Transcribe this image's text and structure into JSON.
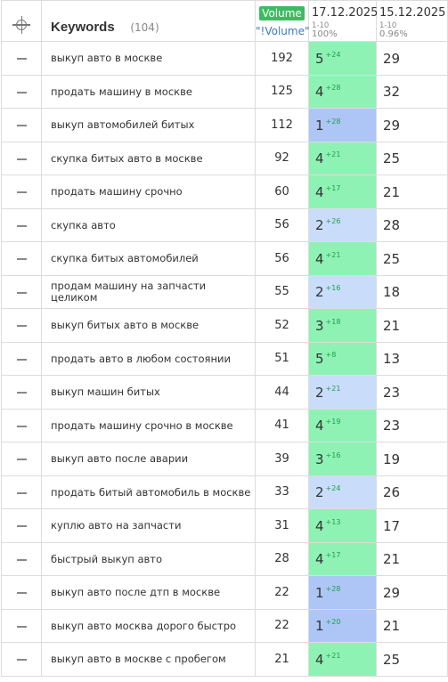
{
  "header": {
    "keywords_label": "Keywords",
    "keywords_count": "(104)",
    "volume_badge": "Volume",
    "volume_sub": "\"!Volume\"",
    "date1": "17.12.2025",
    "date1_range": "1-10",
    "date1_pct": "100%",
    "date2": "15.12.2025",
    "date2_range": "1-10",
    "date2_pct": "0.96%"
  },
  "colors": {
    "top3_green": "#8ff2b5",
    "pos1_blue": "#adc6f5",
    "pos2_lightblue": "#c9ddfb",
    "volume_badge": "#3dbb60",
    "change_text": "#1aa14a"
  },
  "rows": [
    {
      "keyword": "выкуп авто в москве",
      "volume": "192",
      "pos1": "5",
      "change": "+24",
      "pos2": "29"
    },
    {
      "keyword": "продать машину в москве",
      "volume": "125",
      "pos1": "4",
      "change": "+28",
      "pos2": "32"
    },
    {
      "keyword": "выкуп автомобилей битых",
      "volume": "112",
      "pos1": "1",
      "change": "+28",
      "pos2": "29"
    },
    {
      "keyword": "скупка битых авто в москве",
      "volume": "92",
      "pos1": "4",
      "change": "+21",
      "pos2": "25"
    },
    {
      "keyword": "продать машину срочно",
      "volume": "60",
      "pos1": "4",
      "change": "+17",
      "pos2": "21"
    },
    {
      "keyword": "скупка авто",
      "volume": "56",
      "pos1": "2",
      "change": "+26",
      "pos2": "28"
    },
    {
      "keyword": "скупка битых автомобилей",
      "volume": "56",
      "pos1": "4",
      "change": "+21",
      "pos2": "25"
    },
    {
      "keyword": "продам машину на запчасти целиком",
      "volume": "55",
      "pos1": "2",
      "change": "+16",
      "pos2": "18"
    },
    {
      "keyword": "выкуп битых авто в москве",
      "volume": "52",
      "pos1": "3",
      "change": "+18",
      "pos2": "21"
    },
    {
      "keyword": "продать авто в любом состоянии",
      "volume": "51",
      "pos1": "5",
      "change": "+8",
      "pos2": "13"
    },
    {
      "keyword": "выкуп машин битых",
      "volume": "44",
      "pos1": "2",
      "change": "+21",
      "pos2": "23"
    },
    {
      "keyword": "продать машину срочно в москве",
      "volume": "41",
      "pos1": "4",
      "change": "+19",
      "pos2": "23"
    },
    {
      "keyword": "выкуп авто после аварии",
      "volume": "39",
      "pos1": "3",
      "change": "+16",
      "pos2": "19"
    },
    {
      "keyword": "продать битый автомобиль в москве",
      "volume": "33",
      "pos1": "2",
      "change": "+24",
      "pos2": "26"
    },
    {
      "keyword": "куплю авто на запчасти",
      "volume": "31",
      "pos1": "4",
      "change": "+13",
      "pos2": "17"
    },
    {
      "keyword": "быстрый выкуп авто",
      "volume": "28",
      "pos1": "4",
      "change": "+17",
      "pos2": "21"
    },
    {
      "keyword": "выкуп авто после дтп в москве",
      "volume": "22",
      "pos1": "1",
      "change": "+28",
      "pos2": "29"
    },
    {
      "keyword": "выкуп авто москва дорого быстро",
      "volume": "22",
      "pos1": "1",
      "change": "+20",
      "pos2": "21"
    },
    {
      "keyword": "выкуп авто в москве с пробегом",
      "volume": "21",
      "pos1": "4",
      "change": "+21",
      "pos2": "25"
    }
  ]
}
